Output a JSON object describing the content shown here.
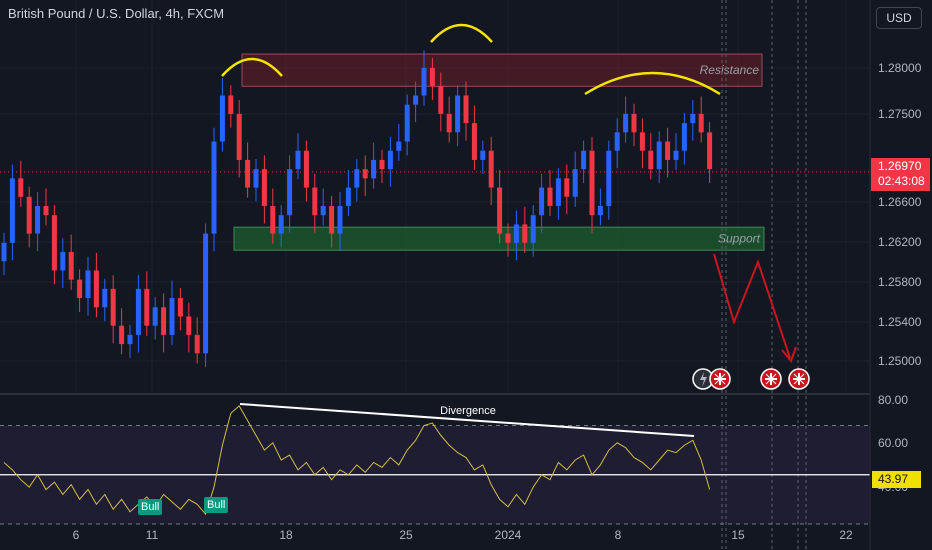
{
  "header": {
    "symbol_title": "British Pound / U.S. Dollar, 4h, FXCM",
    "currency_button": "USD"
  },
  "last_price": {
    "value": "1.26970",
    "countdown": "02:43:08"
  },
  "rsi_value": "43.97",
  "colors": {
    "background": "#131722",
    "up": "#2962ff",
    "down": "#f23645",
    "resistance_zone": "#6e1e28",
    "support_zone": "#1a5a2e",
    "annotation_yellow": "#f5e400",
    "forecast_red": "#c8161e",
    "rsi_line": "#d4bd42",
    "bull_badge": "#089981"
  },
  "chart_data": [
    {
      "type": "candlestick",
      "title": "British Pound / U.S. Dollar, 4h, FXCM",
      "y_axis": {
        "ticks": [
          "1.28000",
          "1.27500",
          "1.26600",
          "1.26200",
          "1.25800",
          "1.25400",
          "1.25000"
        ],
        "range": [
          1.2458,
          1.2875
        ]
      },
      "x_axis": {
        "ticks": [
          "6",
          "11",
          "18",
          "25",
          "2024",
          "8",
          "15",
          "22"
        ]
      },
      "price_path": [
        1.262,
        1.269,
        1.267,
        1.263,
        1.266,
        1.265,
        1.259,
        1.261,
        1.258,
        1.256,
        1.259,
        1.255,
        1.257,
        1.253,
        1.251,
        1.252,
        1.257,
        1.253,
        1.255,
        1.252,
        1.256,
        1.254,
        1.252,
        1.25,
        1.263,
        1.273,
        1.278,
        1.276,
        1.271,
        1.268,
        1.27,
        1.266,
        1.263,
        1.265,
        1.27,
        1.272,
        1.268,
        1.265,
        1.266,
        1.263,
        1.266,
        1.268,
        1.27,
        1.269,
        1.271,
        1.27,
        1.272,
        1.273,
        1.277,
        1.278,
        1.281,
        1.279,
        1.276,
        1.274,
        1.278,
        1.275,
        1.271,
        1.272,
        1.268,
        1.263,
        1.262,
        1.264,
        1.262,
        1.265,
        1.268,
        1.266,
        1.269,
        1.267,
        1.27,
        1.272,
        1.265,
        1.266,
        1.272,
        1.274,
        1.276,
        1.274,
        1.272,
        1.27,
        1.273,
        1.271,
        1.272,
        1.275,
        1.276,
        1.274,
        1.27
      ],
      "zones": [
        {
          "label": "Resistance",
          "from": 1.279,
          "to": 1.2825
        },
        {
          "label": "Support",
          "from": 1.2612,
          "to": 1.2637
        }
      ],
      "last_price_line": 1.2697
    },
    {
      "type": "line",
      "title": "",
      "y_axis": {
        "ticks": [
          "80.00",
          "60.00",
          "40.00"
        ],
        "range": [
          30,
          82
        ]
      },
      "levels": [
        70,
        50,
        30
      ],
      "annotation": "Divergence",
      "signals": [
        "Bull",
        "Bull"
      ],
      "values": [
        55,
        52,
        48,
        45,
        50,
        44,
        47,
        42,
        46,
        40,
        44,
        38,
        42,
        36,
        40,
        35,
        38,
        41,
        37,
        42,
        39,
        36,
        40,
        38,
        34,
        45,
        62,
        75,
        78,
        72,
        66,
        60,
        63,
        56,
        58,
        52,
        55,
        50,
        53,
        48,
        52,
        50,
        54,
        51,
        55,
        53,
        57,
        54,
        60,
        64,
        70,
        71,
        66,
        62,
        59,
        57,
        52,
        54,
        46,
        40,
        37,
        42,
        38,
        45,
        50,
        48,
        55,
        52,
        56,
        58,
        50,
        54,
        60,
        63,
        61,
        57,
        55,
        52,
        56,
        60,
        59,
        62,
        64,
        56,
        44
      ]
    }
  ]
}
